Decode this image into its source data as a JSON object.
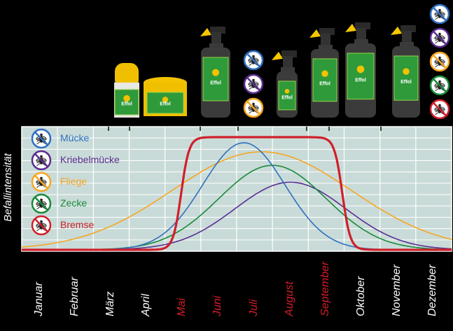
{
  "chart_data": {
    "type": "line",
    "ylabel": "Befallintensität",
    "months": [
      {
        "label": "Januar",
        "highlight": false
      },
      {
        "label": "Februar",
        "highlight": false
      },
      {
        "label": "März",
        "highlight": false
      },
      {
        "label": "April",
        "highlight": false
      },
      {
        "label": "Mai",
        "highlight": true
      },
      {
        "label": "Juni",
        "highlight": true
      },
      {
        "label": "Juli",
        "highlight": true
      },
      {
        "label": "August",
        "highlight": true
      },
      {
        "label": "September",
        "highlight": true
      },
      {
        "label": "Oktober",
        "highlight": false
      },
      {
        "label": "November",
        "highlight": false
      },
      {
        "label": "Dezember",
        "highlight": false
      }
    ],
    "ylim": [
      0,
      1
    ],
    "grid": true,
    "legend_position": "top-left",
    "series": [
      {
        "name": "Mücke",
        "color": "#2f6fc0",
        "icon": "mosquito-icon",
        "mu": 6.2,
        "sigma": 1.15,
        "peak": 0.95
      },
      {
        "name": "Kriebelmücke",
        "color": "#5a2d91",
        "icon": "blackfly-icon",
        "mu": 7.5,
        "sigma": 1.55,
        "peak": 0.6
      },
      {
        "name": "Fliege",
        "color": "#f5a623",
        "icon": "fly-icon",
        "mu": 6.7,
        "sigma": 2.5,
        "peak": 0.87
      },
      {
        "name": "Zecke",
        "color": "#1a8a3a",
        "icon": "tick-icon",
        "mu": 7.0,
        "sigma": 1.5,
        "peak": 0.75
      },
      {
        "name": "Bremse",
        "color": "#d0202a",
        "icon": "horsefly-icon",
        "plateau": [
          4.45,
          8.95
        ],
        "peak": 1.0
      }
    ]
  },
  "products": [
    {
      "name": "roll-on",
      "label": "Effol"
    },
    {
      "name": "gel-tub",
      "label": "Effol"
    },
    {
      "name": "spray-large",
      "label": "Effol"
    },
    {
      "name": "spray-small",
      "label": "Effol"
    },
    {
      "name": "spray-medium",
      "label": "Effol"
    },
    {
      "name": "spray-tall",
      "label": "Effol"
    },
    {
      "name": "spray-right",
      "label": "Effol"
    }
  ]
}
